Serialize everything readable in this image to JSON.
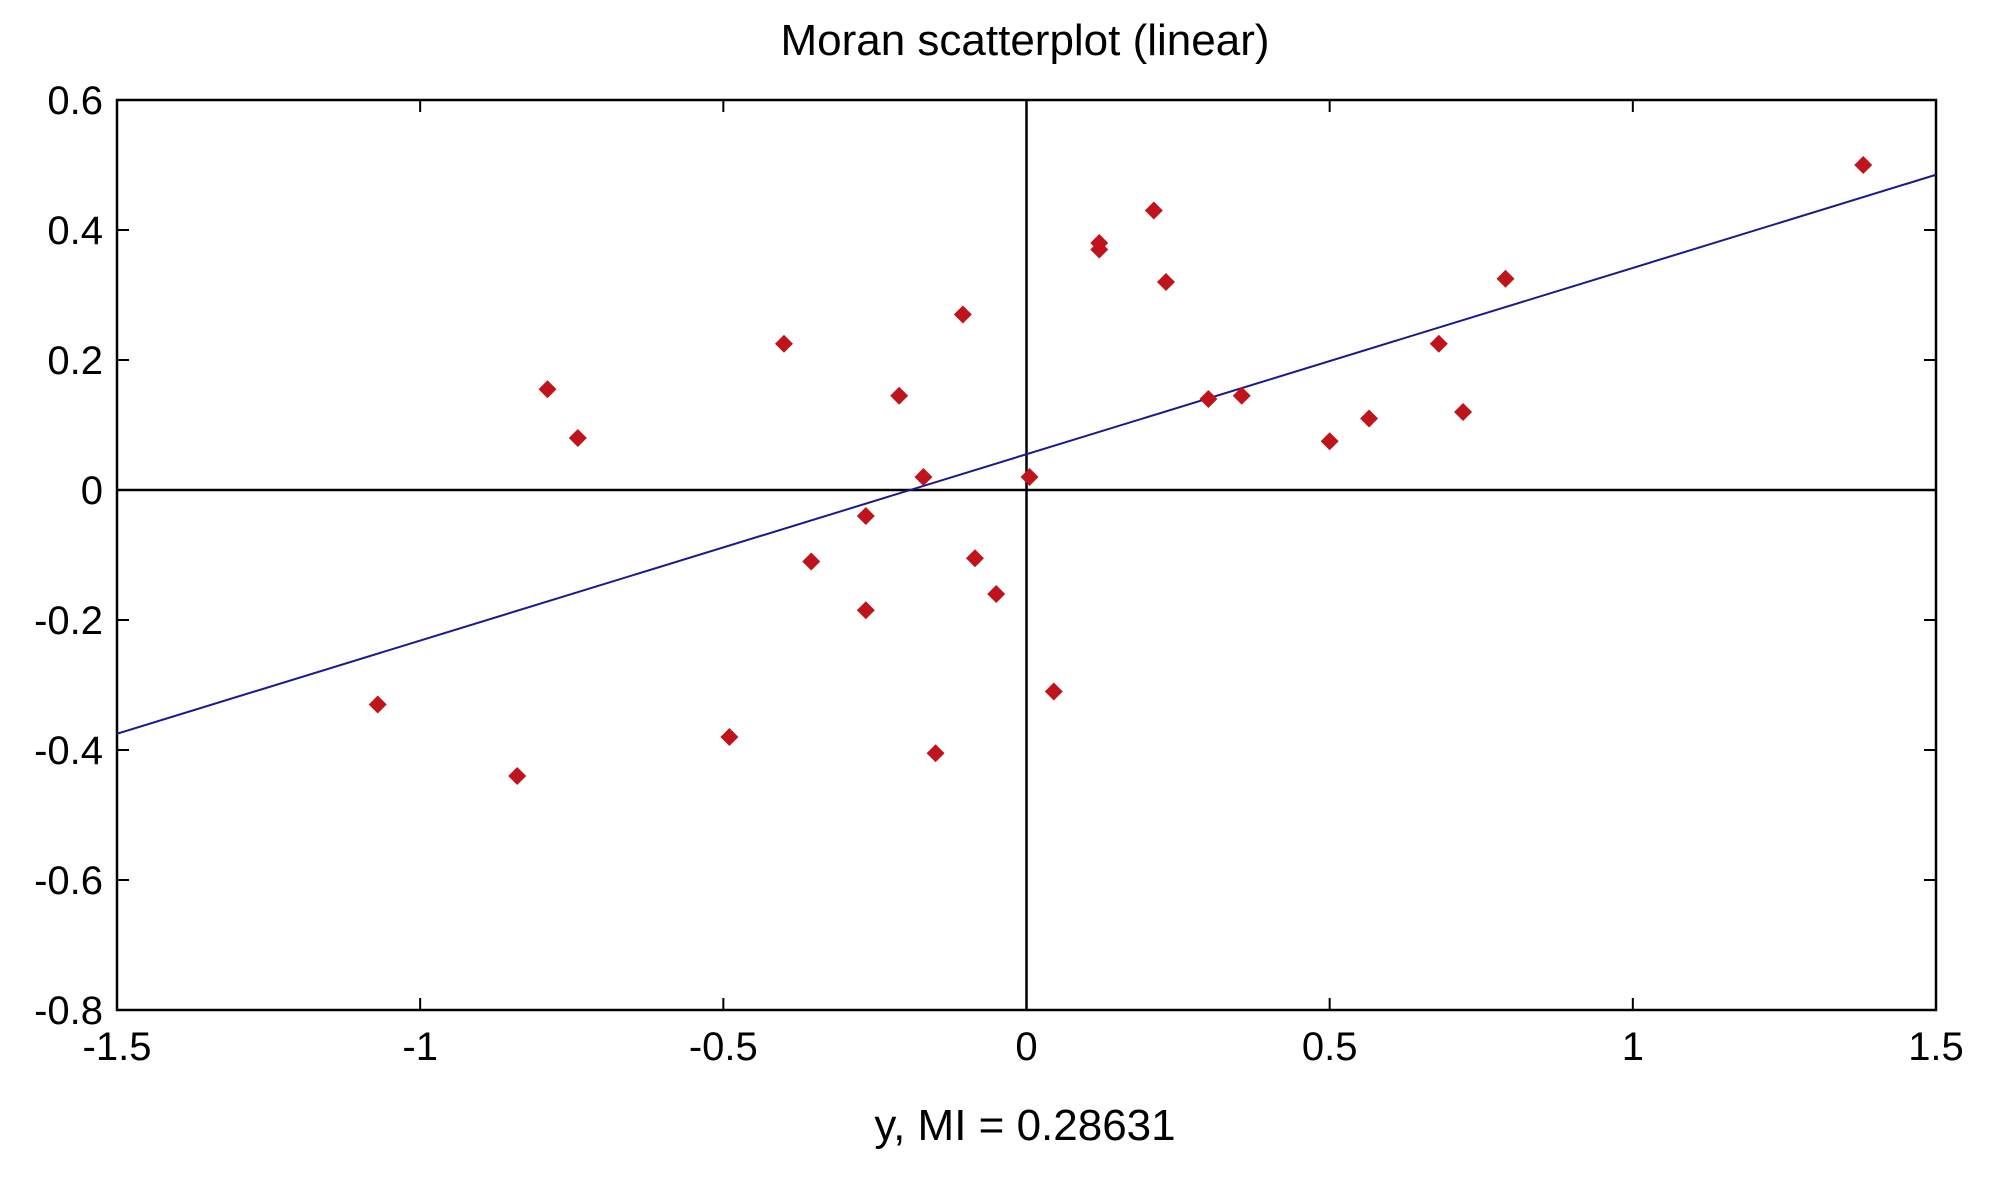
{
  "chart_data": {
    "type": "scatter",
    "title": "Moran scatterplot (linear)",
    "xlabel": "y,  MI = 0.28631",
    "ylabel": "",
    "xlim": [
      -1.5,
      1.5
    ],
    "ylim": [
      -0.8,
      0.6
    ],
    "xticks": [
      -1.5,
      -1,
      -0.5,
      0,
      0.5,
      1,
      1.5
    ],
    "xtick_labels": [
      "-1.5",
      "-1",
      "-0.5",
      "0",
      "0.5",
      "1",
      "1.5"
    ],
    "yticks": [
      -0.8,
      -0.6,
      -0.4,
      -0.2,
      0,
      0.2,
      0.4,
      0.6
    ],
    "ytick_labels": [
      "-0.8",
      "-0.6",
      "-0.4",
      "-0.2",
      "0",
      "0.2",
      "0.4",
      "0.6"
    ],
    "grid": false,
    "reference_lines": {
      "x": 0,
      "y": 0
    },
    "points": [
      {
        "x": -1.07,
        "y": -0.33
      },
      {
        "x": -0.84,
        "y": -0.44
      },
      {
        "x": -0.79,
        "y": 0.155
      },
      {
        "x": -0.74,
        "y": 0.08
      },
      {
        "x": -0.49,
        "y": -0.38
      },
      {
        "x": -0.4,
        "y": 0.225
      },
      {
        "x": -0.355,
        "y": -0.11
      },
      {
        "x": -0.265,
        "y": -0.04
      },
      {
        "x": -0.265,
        "y": -0.185
      },
      {
        "x": -0.21,
        "y": 0.145
      },
      {
        "x": -0.17,
        "y": 0.02
      },
      {
        "x": -0.15,
        "y": -0.405
      },
      {
        "x": -0.105,
        "y": 0.27
      },
      {
        "x": -0.085,
        "y": -0.105
      },
      {
        "x": -0.05,
        "y": -0.16
      },
      {
        "x": 0.005,
        "y": 0.02
      },
      {
        "x": 0.045,
        "y": -0.31
      },
      {
        "x": 0.12,
        "y": 0.37
      },
      {
        "x": 0.12,
        "y": 0.38
      },
      {
        "x": 0.21,
        "y": 0.43
      },
      {
        "x": 0.23,
        "y": 0.32
      },
      {
        "x": 0.3,
        "y": 0.14
      },
      {
        "x": 0.355,
        "y": 0.145
      },
      {
        "x": 0.5,
        "y": 0.075
      },
      {
        "x": 0.565,
        "y": 0.11
      },
      {
        "x": 0.68,
        "y": 0.225
      },
      {
        "x": 0.72,
        "y": 0.12
      },
      {
        "x": 0.79,
        "y": 0.325
      },
      {
        "x": 1.38,
        "y": 0.5
      }
    ],
    "fit_line": {
      "x": [
        -1.5,
        1.5
      ],
      "y": [
        -0.375,
        0.485
      ]
    },
    "colors": {
      "points": "#c0141c",
      "fit_line": "#1a1a8c",
      "axes": "#000000",
      "background": "#ffffff"
    },
    "marker": "diamond"
  }
}
